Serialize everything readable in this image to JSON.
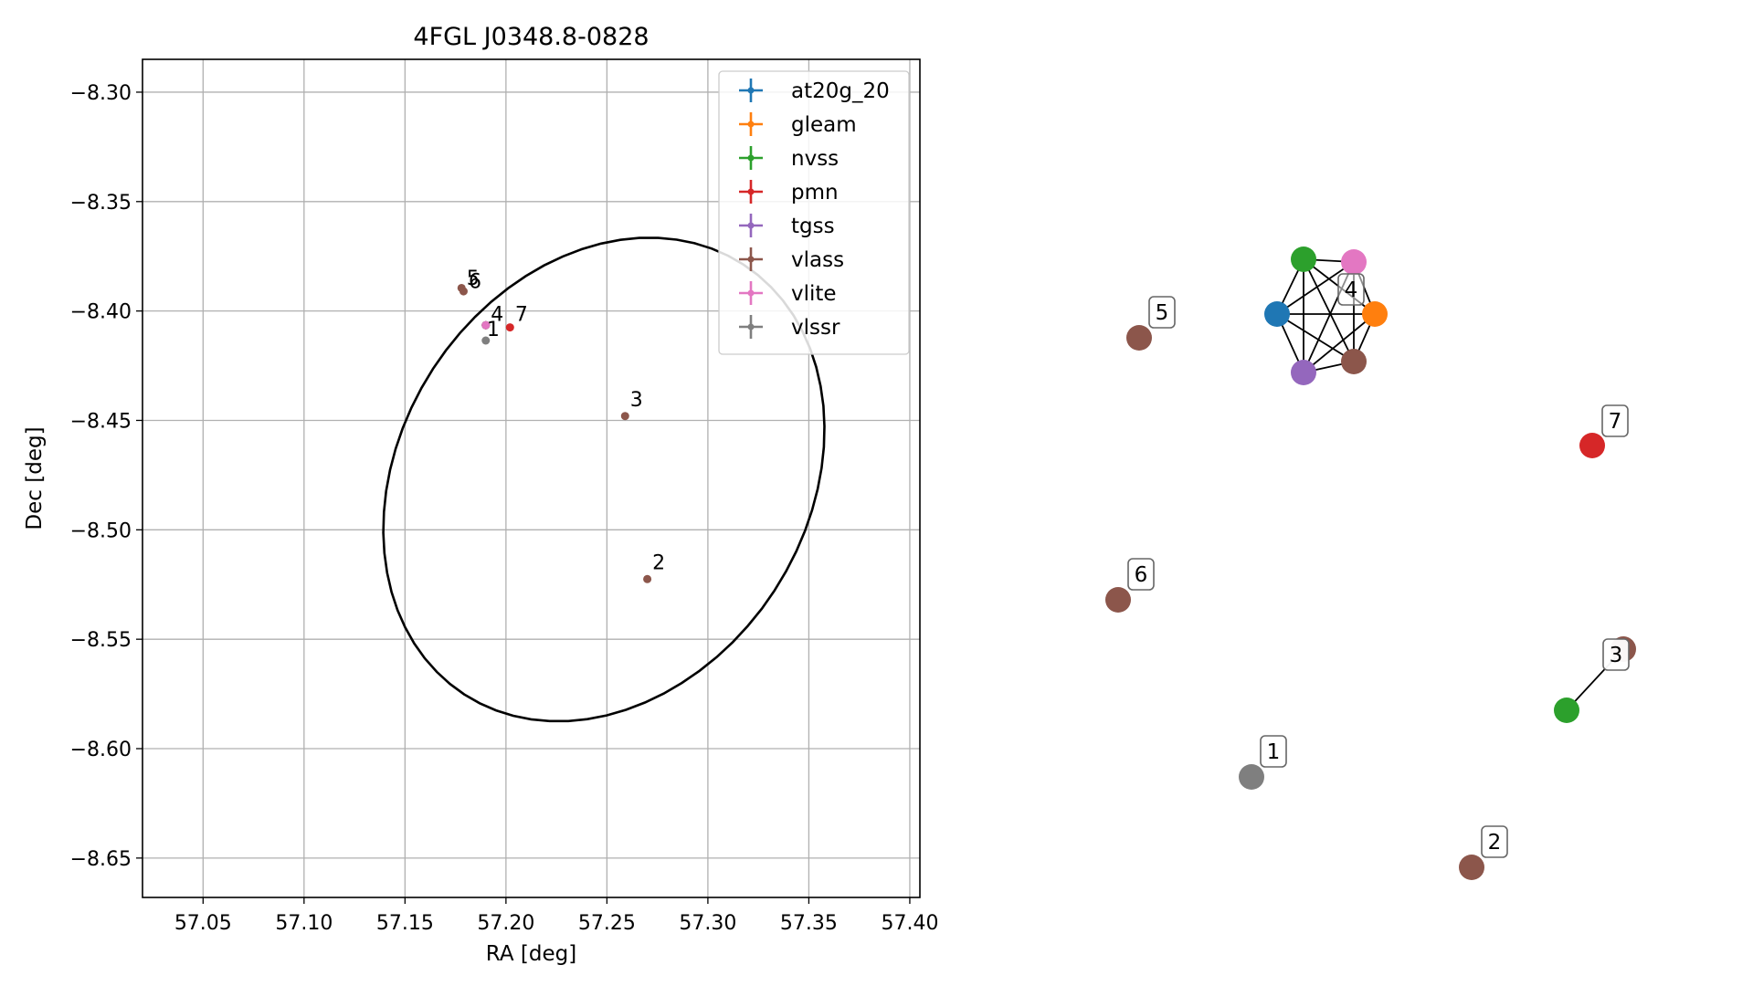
{
  "chart_data": [
    {
      "type": "scatter",
      "title": "4FGL J0348.8-0828",
      "xlabel": "RA [deg]",
      "ylabel": "Dec [deg]",
      "xlim": [
        57.02,
        57.405
      ],
      "ylim": [
        -8.668,
        -8.285
      ],
      "x_ticks": [
        57.05,
        57.1,
        57.15,
        57.2,
        57.25,
        57.3,
        57.35,
        57.4
      ],
      "x_tick_labels": [
        "57.05",
        "57.10",
        "57.15",
        "57.20",
        "57.25",
        "57.30",
        "57.35",
        "57.40"
      ],
      "y_ticks": [
        -8.3,
        -8.35,
        -8.4,
        -8.45,
        -8.5,
        -8.55,
        -8.6,
        -8.65
      ],
      "y_tick_labels": [
        "−8.30",
        "−8.35",
        "−8.40",
        "−8.45",
        "−8.50",
        "−8.55",
        "−8.60",
        "−8.65"
      ],
      "grid": true,
      "legend_position": "top-right",
      "legend": [
        {
          "name": "at20g_20",
          "color": "#1f77b4"
        },
        {
          "name": "gleam",
          "color": "#ff7f0e"
        },
        {
          "name": "nvss",
          "color": "#2ca02c"
        },
        {
          "name": "pmn",
          "color": "#d62728"
        },
        {
          "name": "tgss",
          "color": "#9467bd"
        },
        {
          "name": "vlass",
          "color": "#8c564b"
        },
        {
          "name": "vlite",
          "color": "#e377c2"
        },
        {
          "name": "vlssr",
          "color": "#7f7f7f"
        }
      ],
      "ellipse": {
        "center": [
          57.2485,
          -8.477
        ],
        "ra_extent": [
          57.1045,
          57.323
        ],
        "dec_extent": [
          -8.588,
          -8.367
        ],
        "color": "#000000"
      },
      "points": [
        {
          "ra": 57.19,
          "dec": -8.4065,
          "catalog": "at20g_20",
          "color": "#1f77b4"
        },
        {
          "ra": 57.19,
          "dec": -8.4065,
          "catalog": "gleam",
          "color": "#ff7f0e"
        },
        {
          "ra": 57.19,
          "dec": -8.4065,
          "catalog": "nvss",
          "color": "#2ca02c"
        },
        {
          "ra": 57.19,
          "dec": -8.4065,
          "catalog": "tgss",
          "color": "#9467bd"
        },
        {
          "ra": 57.19,
          "dec": -8.4065,
          "catalog": "vlass",
          "color": "#8c564b"
        },
        {
          "ra": 57.19,
          "dec": -8.4065,
          "catalog": "vlite",
          "color": "#e377c2"
        },
        {
          "ra": 57.202,
          "dec": -8.4075,
          "catalog": "pmn",
          "color": "#d62728"
        },
        {
          "ra": 57.19,
          "dec": -8.4135,
          "catalog": "vlssr",
          "color": "#7f7f7f"
        },
        {
          "ra": 57.259,
          "dec": -8.448,
          "catalog": "vlass",
          "color": "#8c564b"
        },
        {
          "ra": 57.27,
          "dec": -8.5225,
          "catalog": "vlass",
          "color": "#8c564b"
        },
        {
          "ra": 57.178,
          "dec": -8.3895,
          "catalog": "vlass",
          "color": "#8c564b"
        },
        {
          "ra": 57.179,
          "dec": -8.391,
          "catalog": "vlass",
          "color": "#8c564b"
        }
      ],
      "annotations": [
        {
          "text": "1",
          "ra": 57.1905,
          "dec": -8.4115
        },
        {
          "text": "2",
          "ra": 57.2725,
          "dec": -8.518
        },
        {
          "text": "3",
          "ra": 57.2615,
          "dec": -8.4435
        },
        {
          "text": "4",
          "ra": 57.1925,
          "dec": -8.4045
        },
        {
          "text": "5",
          "ra": 57.1805,
          "dec": -8.388
        },
        {
          "text": "6",
          "ra": 57.1815,
          "dec": -8.3895
        },
        {
          "text": "7",
          "ra": 57.2045,
          "dec": -8.4045
        }
      ]
    },
    {
      "type": "network",
      "nodes": [
        {
          "id": "at20g_20",
          "color": "#1f77b4"
        },
        {
          "id": "gleam",
          "color": "#ff7f0e"
        },
        {
          "id": "nvss_4",
          "color": "#2ca02c"
        },
        {
          "id": "tgss",
          "color": "#9467bd"
        },
        {
          "id": "vlass_4",
          "color": "#8c564b"
        },
        {
          "id": "vlite",
          "color": "#e377c2"
        },
        {
          "id": "vlass_5",
          "color": "#8c564b"
        },
        {
          "id": "pmn_7",
          "color": "#d62728"
        },
        {
          "id": "vlass_6",
          "color": "#8c564b"
        },
        {
          "id": "vlass_3",
          "color": "#8c564b"
        },
        {
          "id": "nvss_3",
          "color": "#2ca02c"
        },
        {
          "id": "vlssr_1",
          "color": "#7f7f7f"
        },
        {
          "id": "vlass_2",
          "color": "#8c564b"
        }
      ],
      "edges": [
        [
          "at20g_20",
          "gleam"
        ],
        [
          "at20g_20",
          "nvss_4"
        ],
        [
          "at20g_20",
          "tgss"
        ],
        [
          "at20g_20",
          "vlass_4"
        ],
        [
          "at20g_20",
          "vlite"
        ],
        [
          "gleam",
          "nvss_4"
        ],
        [
          "gleam",
          "tgss"
        ],
        [
          "gleam",
          "vlass_4"
        ],
        [
          "gleam",
          "vlite"
        ],
        [
          "nvss_4",
          "tgss"
        ],
        [
          "nvss_4",
          "vlass_4"
        ],
        [
          "nvss_4",
          "vlite"
        ],
        [
          "tgss",
          "vlass_4"
        ],
        [
          "tgss",
          "vlite"
        ],
        [
          "vlass_4",
          "vlite"
        ],
        [
          "vlass_3",
          "nvss_3"
        ]
      ],
      "group_labels": [
        {
          "text": "1",
          "color": "#7f7f7f"
        },
        {
          "text": "2",
          "color": "#8c564b"
        },
        {
          "text": "3",
          "color": "#8c564b"
        },
        {
          "text": "4",
          "color": "#8c564b"
        },
        {
          "text": "5",
          "color": "#8c564b"
        },
        {
          "text": "6",
          "color": "#8c564b"
        },
        {
          "text": "7",
          "color": "#d62728"
        }
      ]
    }
  ]
}
